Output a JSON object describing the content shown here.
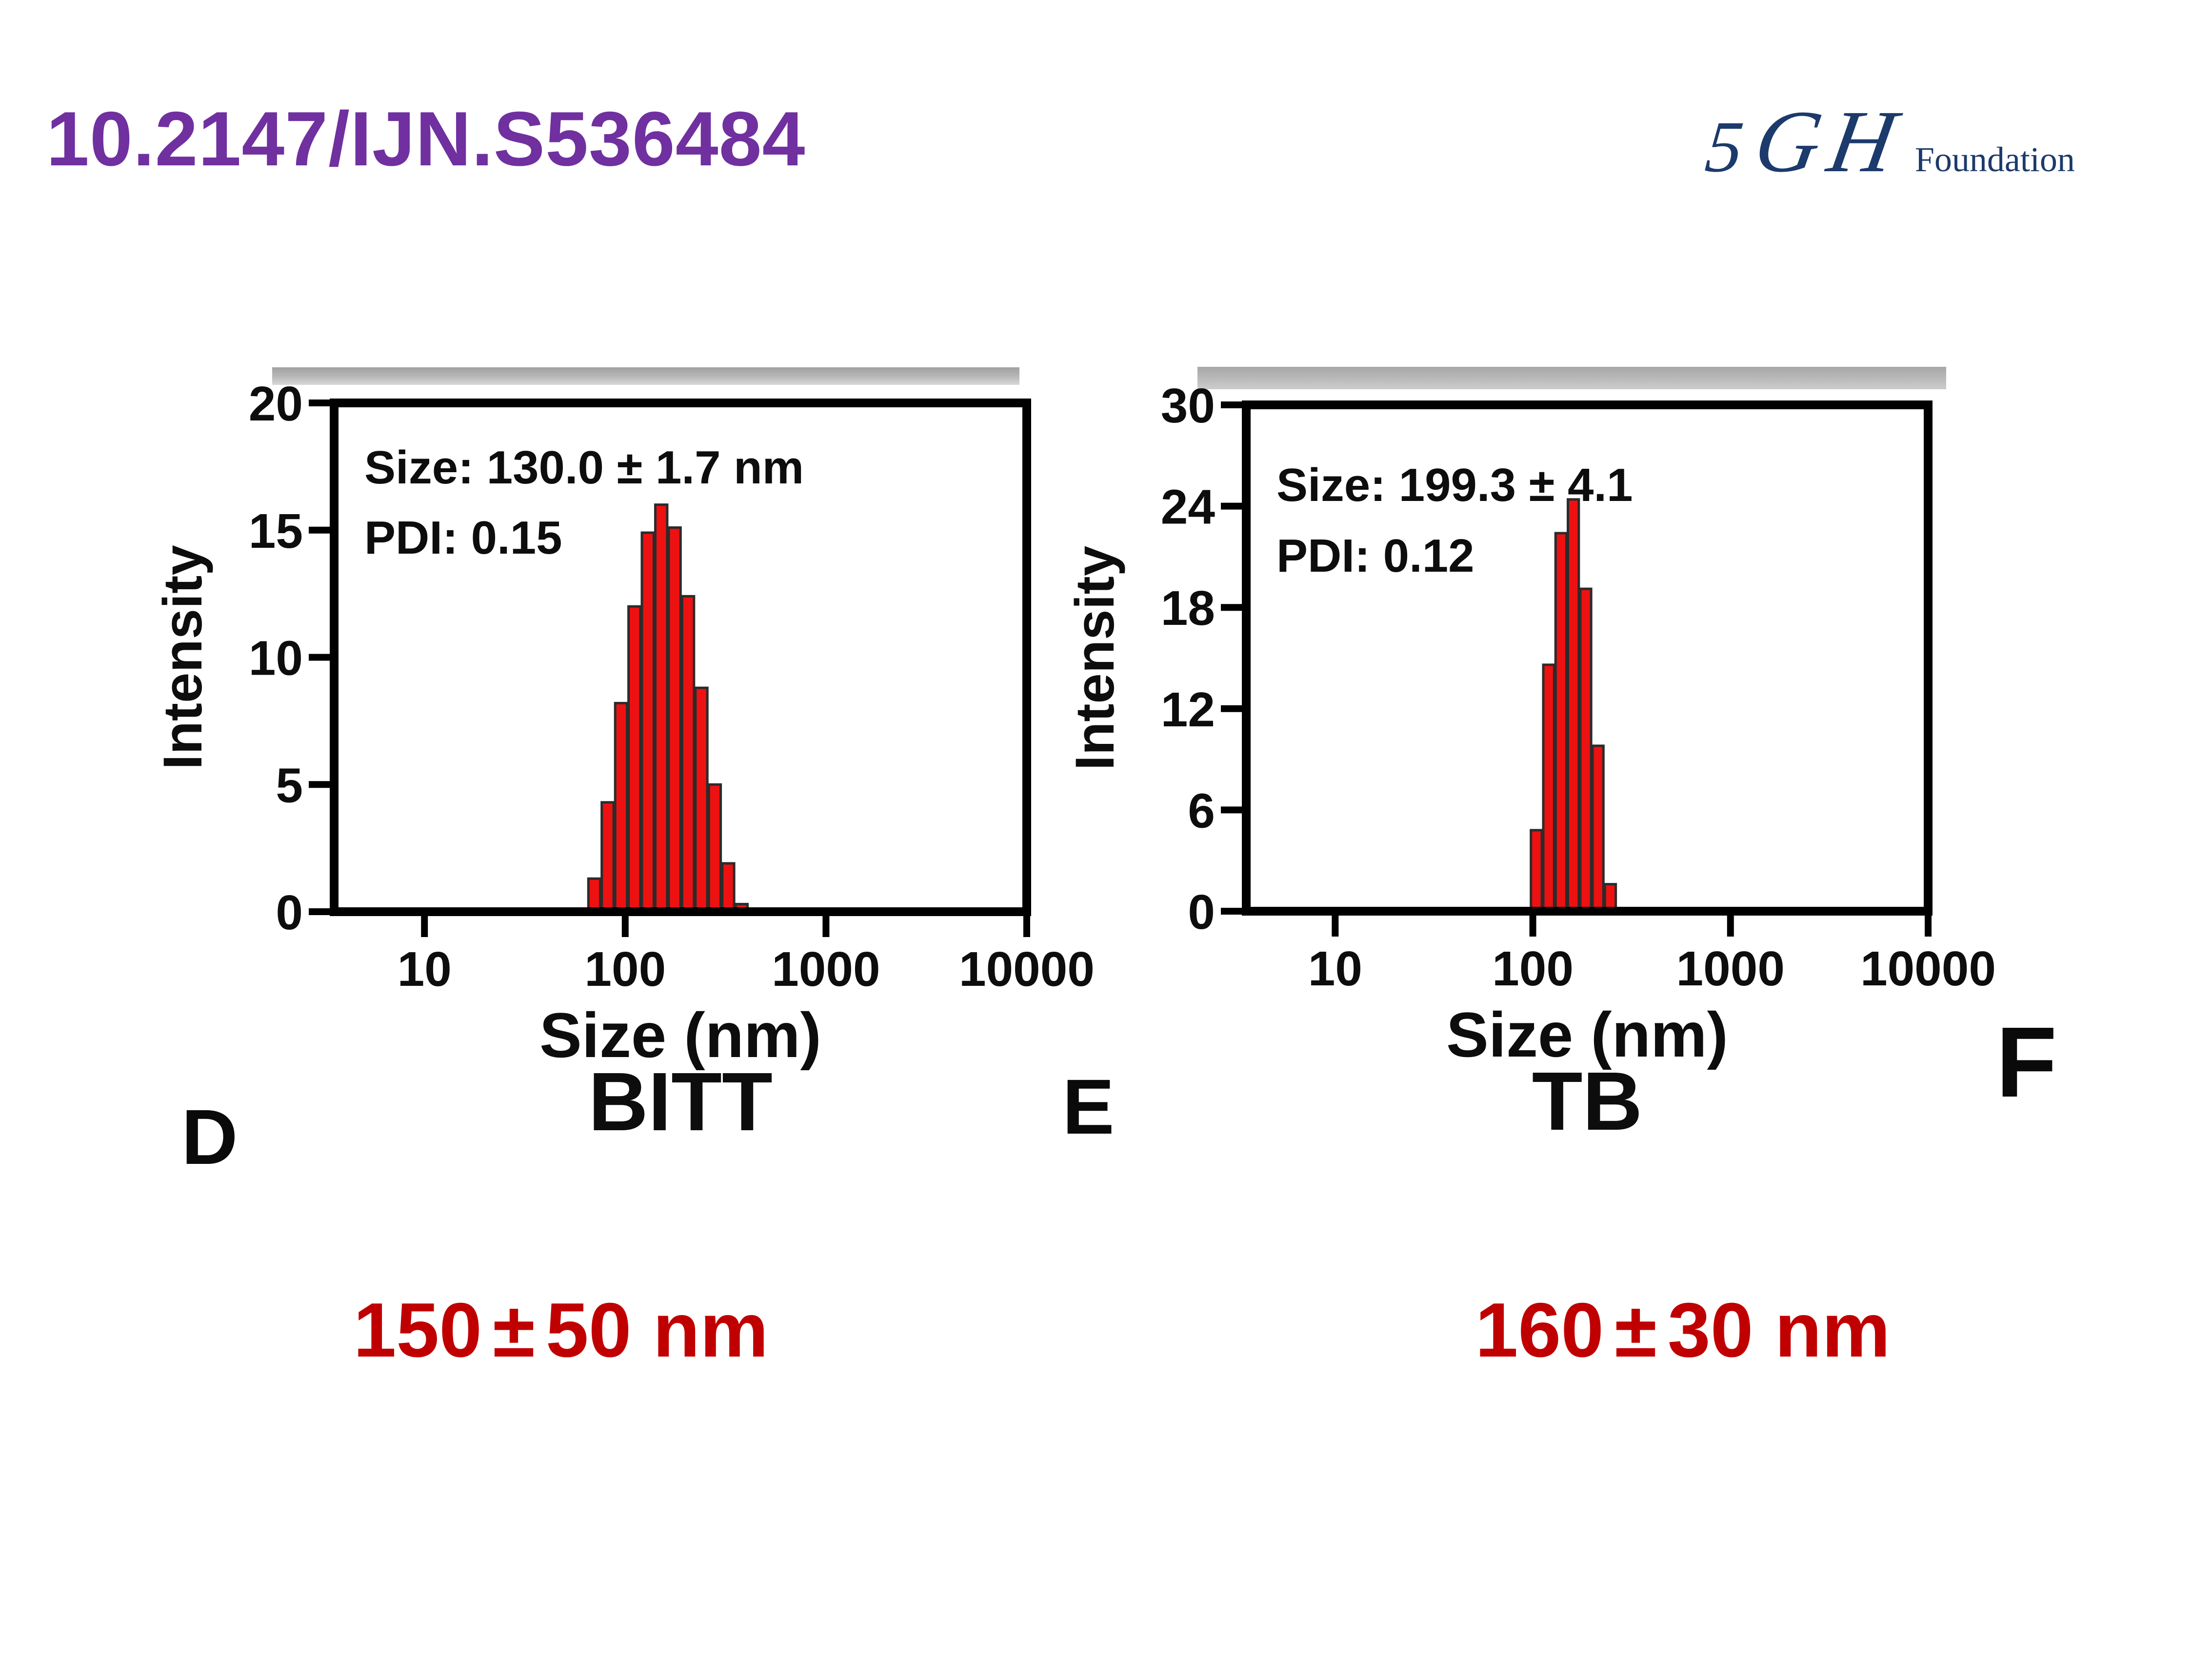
{
  "header": {
    "doi": "10.2147/IJN.S536484"
  },
  "logo": {
    "char1": "5",
    "char2": "G",
    "char3": "H",
    "word": "Foundation",
    "color": "#1c3a6b"
  },
  "colors": {
    "title": "#7030a0",
    "bar_fill": "#ee1111",
    "bar_stroke": "#2b2b2b",
    "axis": "#000000",
    "red_label": "#c00000"
  },
  "chart_data": [
    {
      "type": "bar",
      "panel": "BITT",
      "title": "BITT",
      "xlabel": "Size (nm)",
      "ylabel": "Intensity",
      "annotation_line1": "Size: 130.0 ± 1.7 nm",
      "annotation_line2": "PDI: 0.15",
      "x_scale": "log",
      "x_ticks": [
        10,
        100,
        1000,
        10000
      ],
      "x_log_range": [
        0.55,
        4
      ],
      "y_ticks": [
        0,
        5,
        10,
        15,
        20
      ],
      "ylim": [
        0,
        20
      ],
      "bins_nm": {
        "min": 65,
        "max": 410
      },
      "values": [
        1.3,
        4.3,
        8.2,
        12.0,
        14.9,
        16.0,
        15.1,
        12.4,
        8.8,
        5.0,
        1.9,
        0.3
      ]
    },
    {
      "type": "bar",
      "panel": "TB",
      "title": "TB",
      "xlabel": "Size (nm)",
      "ylabel": "Intensity",
      "annotation_line1": "Size: 199.3 ± 4.1",
      "annotation_line2": "PDI: 0.12",
      "x_scale": "log",
      "x_ticks": [
        10,
        100,
        1000,
        10000
      ],
      "x_log_range": [
        0.55,
        4
      ],
      "y_ticks": [
        0,
        6,
        12,
        18,
        24,
        30
      ],
      "ylim": [
        0,
        30
      ],
      "bins_nm": {
        "min": 97,
        "max": 265
      },
      "values": [
        4.8,
        14.6,
        22.4,
        24.4,
        19.1,
        9.8,
        1.6
      ]
    }
  ],
  "measurements": [
    {
      "value": "150",
      "plus_minus": "±",
      "tolerance": "50 nm"
    },
    {
      "value": "160",
      "plus_minus": "±",
      "tolerance": "30 nm"
    }
  ],
  "partial_letters": [
    "D",
    "E",
    "F"
  ]
}
